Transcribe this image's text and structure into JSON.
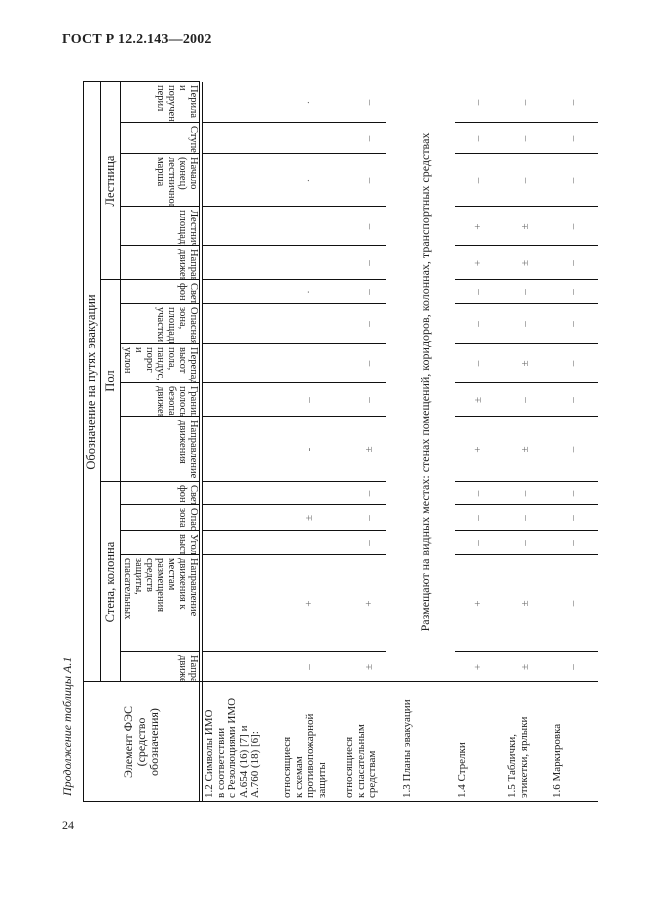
{
  "header": {
    "doc_title": "ГОСТ Р 12.2.143—2002",
    "caption": "Продолжение таблицы А.1",
    "page_number": "24"
  },
  "table": {
    "element_header": "Элемент ФЭС\n(средство\nобозначения)",
    "top_header": "Обозначение на путях эвакуации",
    "groups": [
      "Стена, колонна",
      "Пол",
      "Лестница"
    ],
    "columns": [
      "Направление\nдвижения",
      "Направление\nдвижения к\nместам\nразмещения\nсредств\nзащиты,\nспасательных\nсредств и т.п.",
      "Угол, выступ",
      "Опасная зона",
      "Световой фон",
      "Направление\nдвижения",
      "Граница\nполосы\nбезопасного\nдвижения",
      "Перепад\nвысот пола,\nпандус, порог\nи уклон",
      "Опасная зона,\nплощади,\nучастки",
      "Световой фон",
      "Направление\nдвижения",
      "Лестничная\nплощадка",
      "Начало\n(конец)\nлестничного\nмарша",
      "Ступень",
      "Перила и\nпоручень\nперил"
    ],
    "rows": [
      {
        "label": "1.2 Символы ИМО\nв соответствии\nс Резолюциями ИМО\nA.654 (16) [7] и\nA.760 (18) [6]:",
        "values": [
          "",
          "",
          "",
          "",
          "",
          "",
          "",
          "",
          "",
          "",
          "",
          "",
          "",
          "",
          ""
        ]
      },
      {
        "label": "относящиеся\nк схемам\nпротивопожарной\nзащиты",
        "values": [
          "–",
          "+",
          "",
          "±",
          "",
          "-",
          "–",
          "",
          "",
          "·",
          "",
          "",
          "·",
          "",
          "·"
        ]
      },
      {
        "label": "относящиеся\nк спасательным\nсредствам",
        "values": [
          "±",
          "+",
          "–",
          "–",
          "–",
          "±",
          "–",
          "–",
          "–",
          "–",
          "–",
          "–",
          "–",
          "–",
          "–"
        ]
      },
      {
        "label": "1.3 Планы эвакуации",
        "span_text": "Размещают на видных местах: стенах помещений, коридоров, колоннах, транспортных средствах"
      },
      {
        "label": "1.4 Стрелки",
        "values": [
          "+",
          "+",
          "–",
          "–",
          "–",
          "+",
          "±",
          "–",
          "–",
          "–",
          "+",
          "+",
          "–",
          "–",
          "–"
        ]
      },
      {
        "label": "1.5 Таблички,\nэтикетки, ярлыки",
        "values": [
          "±",
          "±",
          "–",
          "–",
          "–",
          "±",
          "–",
          "±",
          "–",
          "–",
          "±",
          "±",
          "–",
          "–",
          "–"
        ]
      },
      {
        "label": "1.6 Маркировка",
        "values": [
          "–",
          "–",
          "–",
          "–",
          "–",
          "–",
          "–",
          "–",
          "–",
          "–",
          "–",
          "–",
          "–",
          "–",
          "–"
        ]
      }
    ]
  }
}
